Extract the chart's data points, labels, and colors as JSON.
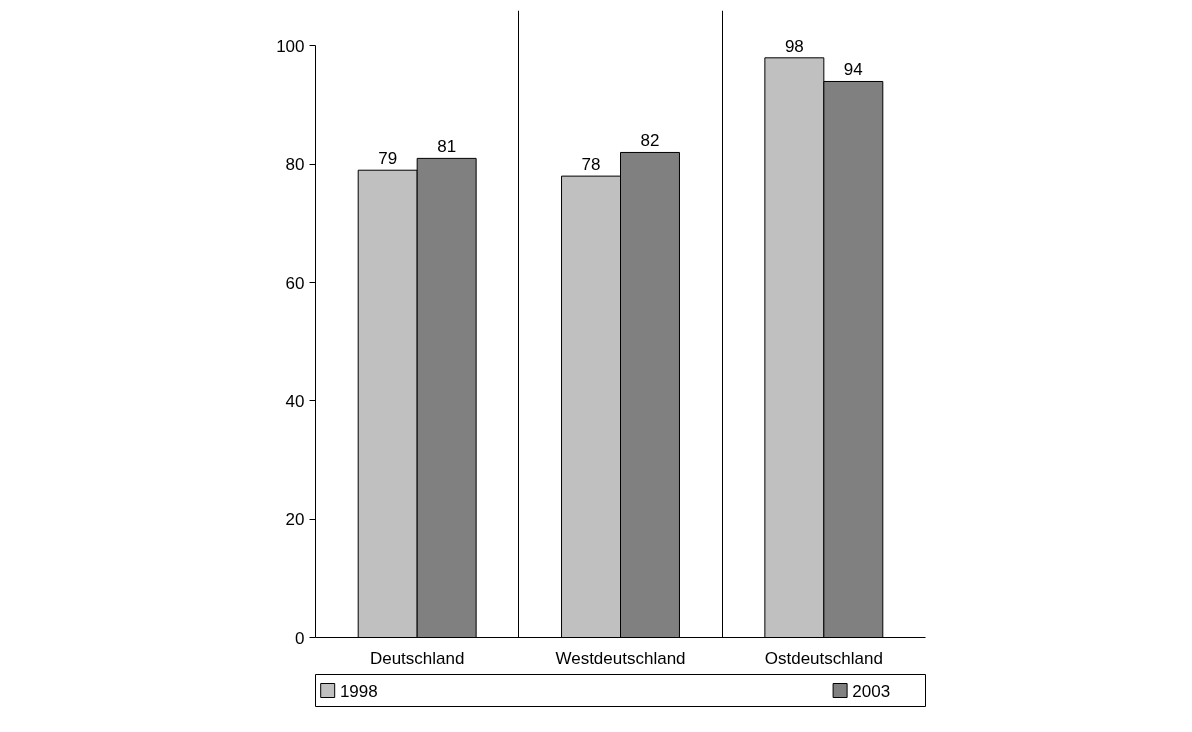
{
  "chart_data": {
    "type": "bar",
    "categories": [
      "Deutschland",
      "Westdeutschland",
      "Ostdeutschland"
    ],
    "series": [
      {
        "name": "1998",
        "color": "#c0c0c0",
        "values": [
          79,
          78,
          98
        ]
      },
      {
        "name": "2003",
        "color": "#808080",
        "values": [
          81,
          82,
          94
        ]
      }
    ],
    "ylim": [
      0,
      100
    ],
    "yticks": [
      0,
      20,
      40,
      60,
      80,
      100
    ],
    "grid": "x",
    "legend": "bottom",
    "data_labels": true
  }
}
